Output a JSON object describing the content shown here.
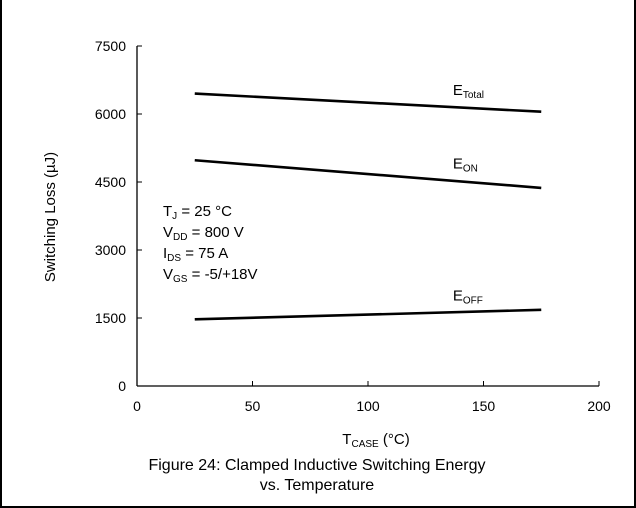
{
  "chart_data": {
    "type": "line",
    "title": "",
    "xlabel": {
      "main": "T",
      "sub": "CASE",
      "suffix": " (°C)"
    },
    "ylabel": "Switching Loss (µJ)",
    "xlim": [
      0,
      200
    ],
    "ylim": [
      0,
      7500
    ],
    "xticks": [
      "0",
      "50",
      "100",
      "150",
      "200"
    ],
    "yticks": [
      "0",
      "1500",
      "3000",
      "4500",
      "6000",
      "7500"
    ],
    "grid": false,
    "series": [
      {
        "name": "E_Total",
        "name_main": "E",
        "name_sub": "Total",
        "x": [
          25,
          175
        ],
        "y": [
          6450,
          6050
        ]
      },
      {
        "name": "E_ON",
        "name_main": "E",
        "name_sub": "ON",
        "x": [
          25,
          175
        ],
        "y": [
          4980,
          4370
        ]
      },
      {
        "name": "E_OFF",
        "name_main": "E",
        "name_sub": "OFF",
        "x": [
          25,
          175
        ],
        "y": [
          1470,
          1680
        ]
      }
    ],
    "annotations": [
      {
        "main": "T",
        "sub": "J",
        "rest": " = 25 °C"
      },
      {
        "main": "V",
        "sub": "DD",
        "rest": " = 800 V"
      },
      {
        "main": "I",
        "sub": "DS",
        "rest": " = 75 A"
      },
      {
        "main": "V",
        "sub": "GS",
        "rest": " = -5/+18V"
      }
    ]
  },
  "caption": {
    "line1": "Figure 24: Clamped Inductive Switching Energy",
    "line2": "vs. Temperature"
  },
  "colors": {
    "line": "#000000",
    "axis": "#000000"
  }
}
